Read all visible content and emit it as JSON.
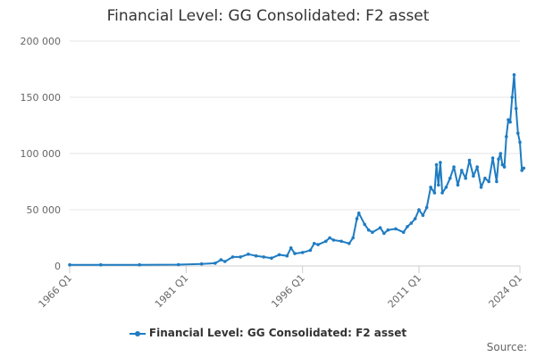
{
  "chart_data": {
    "type": "line",
    "title": "Financial Level: GG Consolidated: F2 asset",
    "xlabel": "",
    "ylabel": "",
    "ylim": [
      0,
      200000
    ],
    "yticks": [
      0,
      50000,
      100000,
      150000,
      200000
    ],
    "ytick_labels": [
      "0",
      "50 000",
      "100 000",
      "150 000",
      "200 000"
    ],
    "xlim": [
      1966,
      2024
    ],
    "xticks": [
      1966,
      1981,
      1996,
      2011,
      2024
    ],
    "xtick_labels": [
      "1966 Q1",
      "1981 Q1",
      "1996 Q1",
      "2011 Q1",
      "2024 Q1"
    ],
    "grid": true,
    "legend_position": "bottom",
    "series_color": "#1f7cc2",
    "series": [
      {
        "name": "Financial Level: GG Consolidated: F2 asset",
        "points": [
          [
            "1966 Q1",
            1000
          ],
          [
            "1970 Q1",
            1000
          ],
          [
            "1975 Q1",
            1000
          ],
          [
            "1980 Q1",
            1200
          ],
          [
            "1983 Q1",
            1800
          ],
          [
            "1984 Q4",
            2500
          ],
          [
            "1985 Q3",
            5500
          ],
          [
            "1986 Q1",
            4000
          ],
          [
            "1987 Q1",
            8000
          ],
          [
            "1988 Q1",
            8000
          ],
          [
            "1989 Q1",
            10500
          ],
          [
            "1990 Q1",
            9000
          ],
          [
            "1991 Q1",
            8000
          ],
          [
            "1992 Q1",
            7000
          ],
          [
            "1993 Q1",
            10000
          ],
          [
            "1994 Q1",
            9000
          ],
          [
            "1994 Q3",
            16000
          ],
          [
            "1995 Q1",
            11000
          ],
          [
            "1996 Q1",
            12000
          ],
          [
            "1997 Q1",
            14000
          ],
          [
            "1997 Q3",
            20000
          ],
          [
            "1998 Q1",
            19000
          ],
          [
            "1999 Q1",
            22000
          ],
          [
            "1999 Q3",
            25000
          ],
          [
            "2000 Q1",
            23000
          ],
          [
            "2001 Q1",
            22000
          ],
          [
            "2002 Q1",
            20000
          ],
          [
            "2002 Q3",
            25000
          ],
          [
            "2003 Q1",
            42000
          ],
          [
            "2003 Q2",
            47000
          ],
          [
            "2004 Q1",
            37000
          ],
          [
            "2004 Q3",
            32000
          ],
          [
            "2005 Q1",
            30000
          ],
          [
            "2006 Q1",
            34000
          ],
          [
            "2006 Q3",
            29000
          ],
          [
            "2007 Q1",
            32000
          ],
          [
            "2008 Q1",
            33000
          ],
          [
            "2009 Q1",
            30000
          ],
          [
            "2009 Q3",
            35000
          ],
          [
            "2010 Q1",
            38000
          ],
          [
            "2010 Q3",
            42000
          ],
          [
            "2011 Q1",
            50000
          ],
          [
            "2011 Q3",
            45000
          ],
          [
            "2012 Q1",
            52000
          ],
          [
            "2012 Q3",
            70000
          ],
          [
            "2013 Q1",
            65000
          ],
          [
            "2013 Q2",
            90000
          ],
          [
            "2013 Q3",
            72000
          ],
          [
            "2013 Q4",
            92000
          ],
          [
            "2014 Q1",
            65000
          ],
          [
            "2014 Q3",
            70000
          ],
          [
            "2015 Q1",
            78000
          ],
          [
            "2015 Q3",
            88000
          ],
          [
            "2016 Q1",
            72000
          ],
          [
            "2016 Q3",
            85000
          ],
          [
            "2017 Q1",
            78000
          ],
          [
            "2017 Q3",
            94000
          ],
          [
            "2018 Q1",
            80000
          ],
          [
            "2018 Q3",
            88000
          ],
          [
            "2019 Q1",
            70000
          ],
          [
            "2019 Q3",
            78000
          ],
          [
            "2020 Q1",
            75000
          ],
          [
            "2020 Q3",
            96000
          ],
          [
            "2021 Q1",
            75000
          ],
          [
            "2021 Q2",
            95000
          ],
          [
            "2021 Q3",
            100000
          ],
          [
            "2021 Q4",
            90000
          ],
          [
            "2022 Q1",
            88000
          ],
          [
            "2022 Q2",
            115000
          ],
          [
            "2022 Q3",
            130000
          ],
          [
            "2022 Q4",
            128000
          ],
          [
            "2023 Q1",
            150000
          ],
          [
            "2023 Q2",
            170000
          ],
          [
            "2023 Q3",
            140000
          ],
          [
            "2023 Q4",
            118000
          ],
          [
            "2024 Q1",
            110000
          ],
          [
            "2024 Q2",
            85000
          ],
          [
            "2024 Q3",
            87000
          ]
        ]
      }
    ]
  },
  "source_label": "Source:"
}
